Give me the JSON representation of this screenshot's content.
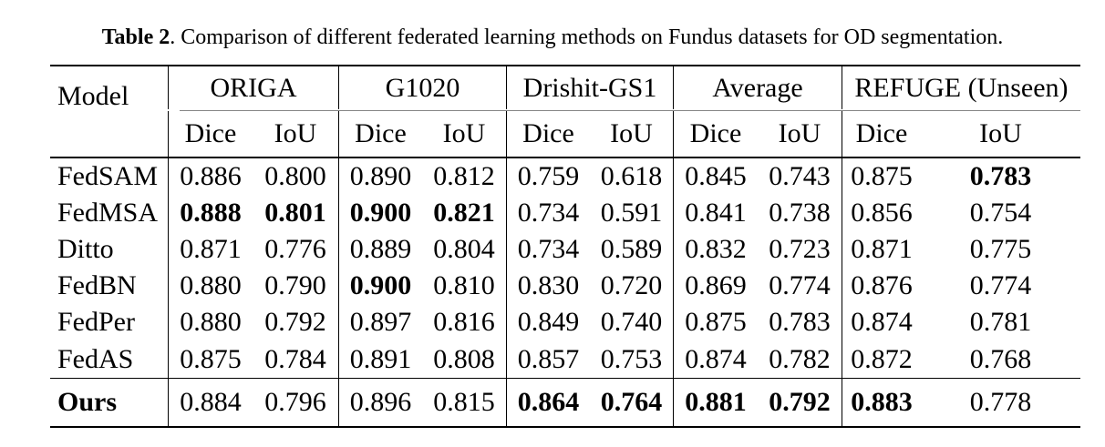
{
  "caption": {
    "label": "Table 2",
    "text": ". Comparison of different federated learning methods on Fundus datasets for OD segmentation."
  },
  "colors": {
    "background": "#ffffff",
    "text": "#000000",
    "rule": "#000000",
    "cmidrule": "#868686"
  },
  "table": {
    "model_header": "Model",
    "groups": [
      {
        "label": "ORIGA",
        "metrics": [
          "Dice",
          "IoU"
        ]
      },
      {
        "label": "G1020",
        "metrics": [
          "Dice",
          "IoU"
        ]
      },
      {
        "label": "Drishit-GS1",
        "metrics": [
          "Dice",
          "IoU"
        ]
      },
      {
        "label": "Average",
        "metrics": [
          "Dice",
          "IoU"
        ]
      },
      {
        "label": "REFUGE (Unseen)",
        "metrics": [
          "Dice",
          "IoU"
        ]
      }
    ],
    "rows": [
      {
        "model": "FedSAM",
        "model_bold": false,
        "values": [
          "0.886",
          "0.800",
          "0.890",
          "0.812",
          "0.759",
          "0.618",
          "0.845",
          "0.743",
          "0.875",
          "0.783"
        ],
        "bold": [
          false,
          false,
          false,
          false,
          false,
          false,
          false,
          false,
          false,
          true
        ]
      },
      {
        "model": "FedMSA",
        "model_bold": false,
        "values": [
          "0.888",
          "0.801",
          "0.900",
          "0.821",
          "0.734",
          "0.591",
          "0.841",
          "0.738",
          "0.856",
          "0.754"
        ],
        "bold": [
          true,
          true,
          true,
          true,
          false,
          false,
          false,
          false,
          false,
          false
        ]
      },
      {
        "model": "Ditto",
        "model_bold": false,
        "values": [
          "0.871",
          "0.776",
          "0.889",
          "0.804",
          "0.734",
          "0.589",
          "0.832",
          "0.723",
          "0.871",
          "0.775"
        ],
        "bold": [
          false,
          false,
          false,
          false,
          false,
          false,
          false,
          false,
          false,
          false
        ]
      },
      {
        "model": "FedBN",
        "model_bold": false,
        "values": [
          "0.880",
          "0.790",
          "0.900",
          "0.810",
          "0.830",
          "0.720",
          "0.869",
          "0.774",
          "0.876",
          "0.774"
        ],
        "bold": [
          false,
          false,
          true,
          false,
          false,
          false,
          false,
          false,
          false,
          false
        ]
      },
      {
        "model": "FedPer",
        "model_bold": false,
        "values": [
          "0.880",
          "0.792",
          "0.897",
          "0.816",
          "0.849",
          "0.740",
          "0.875",
          "0.783",
          "0.874",
          "0.781"
        ],
        "bold": [
          false,
          false,
          false,
          false,
          false,
          false,
          false,
          false,
          false,
          false
        ]
      },
      {
        "model": "FedAS",
        "model_bold": false,
        "values": [
          "0.875",
          "0.784",
          "0.891",
          "0.808",
          "0.857",
          "0.753",
          "0.874",
          "0.782",
          "0.872",
          "0.768"
        ],
        "bold": [
          false,
          false,
          false,
          false,
          false,
          false,
          false,
          false,
          false,
          false
        ]
      }
    ],
    "ours": {
      "model": "Ours",
      "model_bold": true,
      "values": [
        "0.884",
        "0.796",
        "0.896",
        "0.815",
        "0.864",
        "0.764",
        "0.881",
        "0.792",
        "0.883",
        "0.778"
      ],
      "bold": [
        false,
        false,
        false,
        false,
        true,
        true,
        true,
        true,
        true,
        false
      ]
    }
  }
}
